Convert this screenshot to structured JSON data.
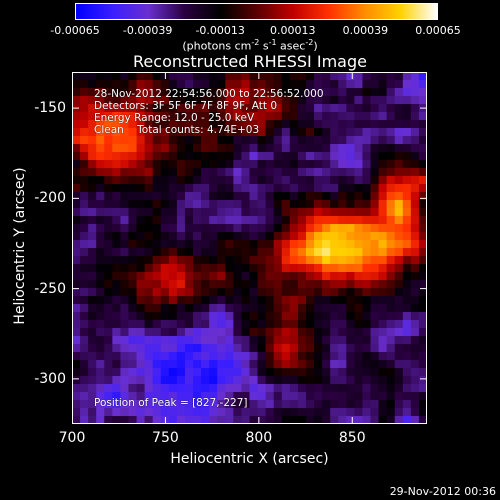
{
  "colorbar": {
    "ticks": [
      "-0.00065",
      "-0.00039",
      "-0.00013",
      "0.00013",
      "0.00039",
      "0.00065"
    ],
    "unit_base": "(photons cm",
    "unit_exp1": "-2",
    "unit_mid": " s",
    "unit_exp2": "-1",
    "unit_mid2": " asec",
    "unit_exp3": "-2",
    "unit_end": ")"
  },
  "chart_data": {
    "type": "heatmap",
    "title": "Reconstructed RHESSI Image",
    "xlabel": "Heliocentric X (arcsec)",
    "ylabel": "Heliocentric Y (arcsec)",
    "xlim": [
      700,
      890
    ],
    "ylim": [
      -325,
      -130
    ],
    "x_ticks": [
      "700",
      "750",
      "800",
      "850"
    ],
    "y_ticks": [
      "-150",
      "-200",
      "-250",
      "-300"
    ],
    "x_tick_values": [
      700,
      750,
      800,
      850
    ],
    "y_tick_values": [
      -150,
      -200,
      -250,
      -300
    ],
    "color_range": [
      -0.00065,
      0.00065
    ],
    "colormap": [
      "#0000ff",
      "#3c1fff",
      "#6a2fd0",
      "#2a0040",
      "#000000",
      "#5a0000",
      "#c00000",
      "#ff3000",
      "#ff8c00",
      "#ffd200",
      "#ffffff"
    ],
    "peak": [
      827,
      -227
    ]
  },
  "annotations": {
    "line1": "28-Nov-2012 22:54:56.000 to 22:56:52.000",
    "line2": "Detectors: 3F 5F 6F 7F 8F 9F, Att 0",
    "line3": "Energy Range: 12.0 - 25.0 keV",
    "line4": "Clean    Total counts: 4.74E+03",
    "peak_text": "Position of Peak = [827,-227]"
  },
  "timestamp": "29-Nov-2012 00:36"
}
